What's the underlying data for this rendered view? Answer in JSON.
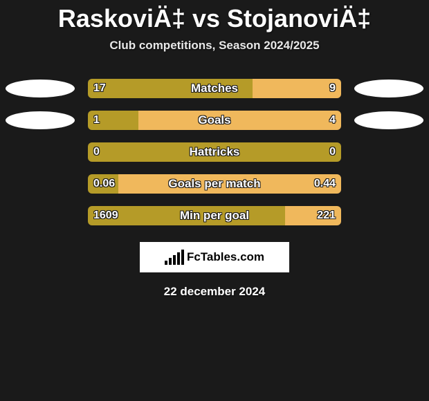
{
  "title": "RaskoviÄ‡ vs StojanoviÄ‡",
  "subtitle": "Club competitions, Season 2024/2025",
  "date": "22 december 2024",
  "brand": "FcTables.com",
  "colors": {
    "left_bar": "#b59b28",
    "right_bar": "#f0b85c",
    "background": "#1a1a1a",
    "oval": "#ffffff"
  },
  "bar_track_width": 346,
  "stats": [
    {
      "label": "Matches",
      "left_val": "17",
      "right_val": "9",
      "left_pct": 0.65,
      "right_pct": 0.35,
      "show_ovals": true
    },
    {
      "label": "Goals",
      "left_val": "1",
      "right_val": "4",
      "left_pct": 0.2,
      "right_pct": 0.8,
      "show_ovals": true
    },
    {
      "label": "Hattricks",
      "left_val": "0",
      "right_val": "0",
      "left_pct": 0.5,
      "right_pct": 0.5,
      "show_ovals": false,
      "right_color_override": "#b59b28"
    },
    {
      "label": "Goals per match",
      "left_val": "0.06",
      "right_val": "0.44",
      "left_pct": 0.12,
      "right_pct": 0.88,
      "show_ovals": false
    },
    {
      "label": "Min per goal",
      "left_val": "1609",
      "right_val": "221",
      "left_pct": 0.78,
      "right_pct": 0.22,
      "show_ovals": false
    }
  ]
}
